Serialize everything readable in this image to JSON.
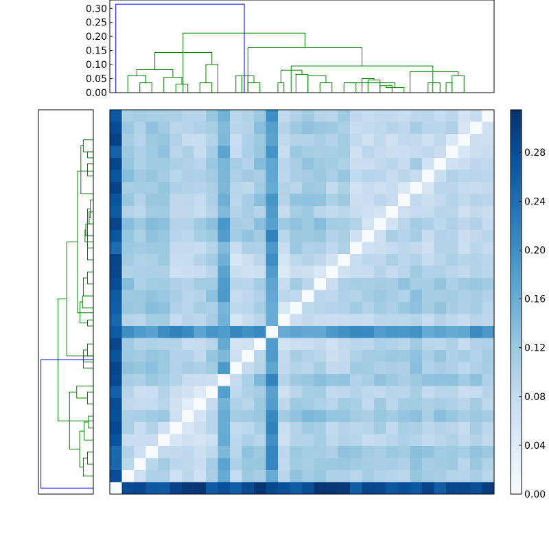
{
  "chart_data": [
    {
      "type": "dendrogram",
      "role": "column-dendrogram",
      "orientation": "top",
      "y_tick_labels": [
        "0.00",
        "0.05",
        "0.10",
        "0.15",
        "0.20",
        "0.25",
        "0.30"
      ],
      "y_ticks": [
        0.0,
        0.05,
        0.1,
        0.15,
        0.2,
        0.25,
        0.3
      ],
      "ylim": [
        0.0,
        0.33
      ],
      "leaf_count": 32,
      "link_colors": {
        "above_threshold": "#0000ff",
        "clusters": "#008000"
      },
      "links": [
        {
          "left": 0.0,
          "right": 0.0,
          "height": 0.315,
          "color": "#0000ff",
          "lbase": 0.0,
          "rbase": 0.283
        }
      ]
    },
    {
      "type": "dendrogram",
      "role": "row-dendrogram",
      "orientation": "left",
      "leaf_count": 32
    },
    {
      "type": "heatmap",
      "colormap": "Blues",
      "colors": {
        "low": "#f7fbff",
        "high": "#08306b"
      },
      "vmin": 0.0,
      "vmax": 0.315,
      "colorbar_tick_labels": [
        "0.00",
        "0.04",
        "0.08",
        "0.12",
        "0.16",
        "0.20",
        "0.24",
        "0.28"
      ],
      "colorbar_ticks": [
        0.0,
        0.04,
        0.08,
        0.12,
        0.16,
        0.2,
        0.24,
        0.28
      ],
      "rows": 32,
      "cols": 32,
      "dendrograms": {
        "top": [
          [
            2.0,
            0.035,
            3.0,
            0.035
          ],
          [
            5.0,
            0.03,
            6.0,
            0.03
          ],
          [
            4.0,
            0.055,
            5.5,
            0.055
          ],
          [
            1.0,
            0.06,
            2.5,
            0.06
          ],
          [
            1.75,
            0.082,
            4.75,
            0.082
          ],
          [
            7.0,
            0.035,
            8.0,
            0.035
          ],
          [
            8.5,
            0.1,
            7.5,
            0.1
          ],
          [
            3.25,
            0.143,
            8.0,
            0.143
          ],
          [
            10.5,
            0.06,
            11.0,
            0.06
          ],
          [
            12.0,
            0.035,
            11.0,
            0.035
          ],
          [
            10.0,
            0.06,
            11.5,
            0.06
          ],
          [
            13.5,
            0.035,
            14.0,
            0.035
          ],
          [
            15.0,
            0.065,
            16.0,
            0.065
          ],
          [
            13.75,
            0.08,
            15.5,
            0.08
          ],
          [
            17.0,
            0.035,
            18.0,
            0.035
          ],
          [
            16.0,
            0.06,
            17.5,
            0.06
          ],
          [
            19.0,
            0.035,
            20.0,
            0.035
          ],
          [
            21.0,
            0.045,
            22.0,
            0.045
          ],
          [
            22.0,
            0.025,
            23.0,
            0.025
          ],
          [
            24.0,
            0.018,
            22.5,
            0.018
          ],
          [
            20.5,
            0.05,
            21.5,
            0.05
          ],
          [
            19.5,
            0.035,
            23.25,
            0.035
          ],
          [
            26.0,
            0.035,
            27.0,
            0.035
          ],
          [
            28.0,
            0.035,
            27.5,
            0.035
          ],
          [
            29.0,
            0.06,
            28.0,
            0.06
          ],
          [
            24.5,
            0.075,
            28.5,
            0.075
          ],
          [
            14.6,
            0.095,
            26.4,
            0.095
          ],
          [
            11.0,
            0.16,
            20.5,
            0.16
          ],
          [
            5.6,
            0.212,
            15.75,
            0.212
          ],
          [
            0.0,
            0.315,
            10.7,
            0.315
          ]
        ]
      }
    }
  ]
}
